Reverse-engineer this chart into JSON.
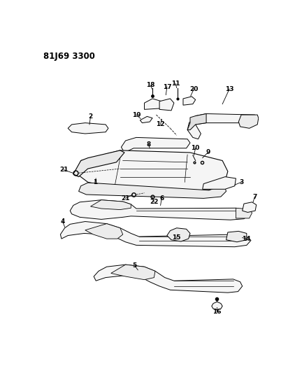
{
  "title": "81J69 3300",
  "bg_color": "#ffffff",
  "line_color": "#000000",
  "title_fontsize": 8.5,
  "label_fontsize": 6.5
}
